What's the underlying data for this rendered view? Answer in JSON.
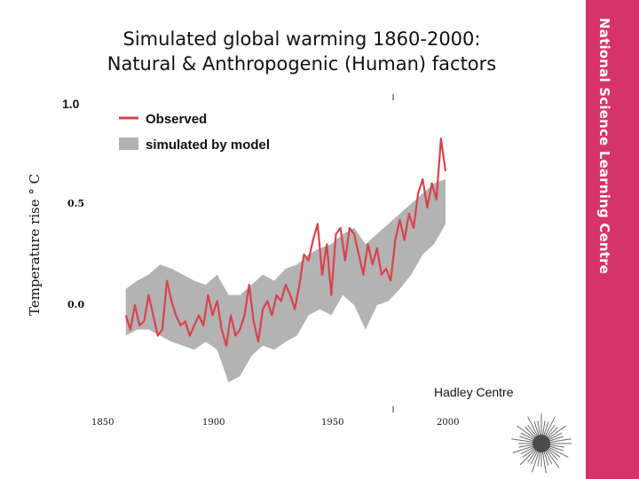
{
  "slide": {
    "title_line1": "Simulated global warming 1860-2000:",
    "title_line2": "Natural & Anthropogenic (Human) factors",
    "brand_text": "National Science Learning Centre",
    "brand_color": "#d6336b"
  },
  "chart_data": {
    "type": "line",
    "title": "",
    "xlabel": "",
    "ylabel": "Temperature rise ° C",
    "xlim": [
      1850,
      2000
    ],
    "ylim": [
      -0.4,
      1.0
    ],
    "x_ticks": [
      "1850",
      "1900",
      "1950",
      "2000"
    ],
    "y_ticks": [
      "1.0",
      "0.5",
      "0.0"
    ],
    "legend": {
      "position": "top-left",
      "entries": [
        {
          "label": "Observed",
          "color": "#d9434d"
        },
        {
          "label": "simulated by model",
          "color": "#b3b3b3"
        }
      ]
    },
    "annotations": [
      "Hadley Centre"
    ],
    "series": [
      {
        "name": "Observed",
        "color": "#d9434d",
        "x": [
          1860,
          1862,
          1864,
          1866,
          1868,
          1870,
          1872,
          1874,
          1876,
          1878,
          1880,
          1882,
          1884,
          1886,
          1888,
          1890,
          1892,
          1894,
          1896,
          1898,
          1900,
          1902,
          1904,
          1906,
          1908,
          1910,
          1912,
          1914,
          1916,
          1918,
          1920,
          1922,
          1924,
          1926,
          1928,
          1930,
          1932,
          1934,
          1936,
          1938,
          1940,
          1942,
          1944,
          1946,
          1948,
          1950,
          1952,
          1954,
          1956,
          1958,
          1960,
          1962,
          1964,
          1966,
          1968,
          1970,
          1972,
          1974,
          1976,
          1978,
          1980,
          1982,
          1984,
          1986,
          1988,
          1990,
          1992,
          1994,
          1996,
          1998,
          2000
        ],
        "values": [
          -0.05,
          -0.12,
          0.0,
          -0.1,
          -0.08,
          0.05,
          -0.05,
          -0.15,
          -0.12,
          0.12,
          0.02,
          -0.05,
          -0.1,
          -0.08,
          -0.15,
          -0.1,
          -0.05,
          -0.1,
          0.05,
          -0.05,
          0.02,
          -0.12,
          -0.2,
          -0.05,
          -0.15,
          -0.12,
          -0.05,
          0.1,
          -0.08,
          -0.18,
          -0.02,
          0.02,
          -0.05,
          0.05,
          0.02,
          0.1,
          0.05,
          -0.02,
          0.1,
          0.25,
          0.22,
          0.32,
          0.4,
          0.15,
          0.3,
          0.05,
          0.35,
          0.38,
          0.22,
          0.38,
          0.35,
          0.25,
          0.15,
          0.3,
          0.2,
          0.28,
          0.15,
          0.18,
          0.12,
          0.32,
          0.42,
          0.32,
          0.45,
          0.38,
          0.55,
          0.62,
          0.48,
          0.6,
          0.52,
          0.82,
          0.66
        ]
      },
      {
        "name": "simulated by model",
        "color": "#b3b3b3",
        "x": [
          1860,
          1865,
          1870,
          1875,
          1880,
          1885,
          1890,
          1895,
          1900,
          1905,
          1910,
          1915,
          1920,
          1925,
          1930,
          1935,
          1940,
          1945,
          1950,
          1955,
          1960,
          1965,
          1970,
          1975,
          1980,
          1985,
          1990,
          1995,
          2000
        ],
        "lower": [
          -0.15,
          -0.12,
          -0.12,
          -0.15,
          -0.18,
          -0.2,
          -0.22,
          -0.18,
          -0.22,
          -0.38,
          -0.35,
          -0.25,
          -0.2,
          -0.22,
          -0.18,
          -0.15,
          -0.05,
          -0.02,
          -0.05,
          0.05,
          0.0,
          -0.12,
          0.0,
          0.02,
          0.08,
          0.15,
          0.25,
          0.3,
          0.4
        ],
        "upper": [
          0.08,
          0.12,
          0.15,
          0.2,
          0.18,
          0.15,
          0.12,
          0.1,
          0.15,
          0.05,
          0.05,
          0.1,
          0.15,
          0.12,
          0.18,
          0.2,
          0.25,
          0.28,
          0.3,
          0.35,
          0.38,
          0.3,
          0.35,
          0.4,
          0.45,
          0.5,
          0.55,
          0.6,
          0.62
        ]
      }
    ]
  }
}
